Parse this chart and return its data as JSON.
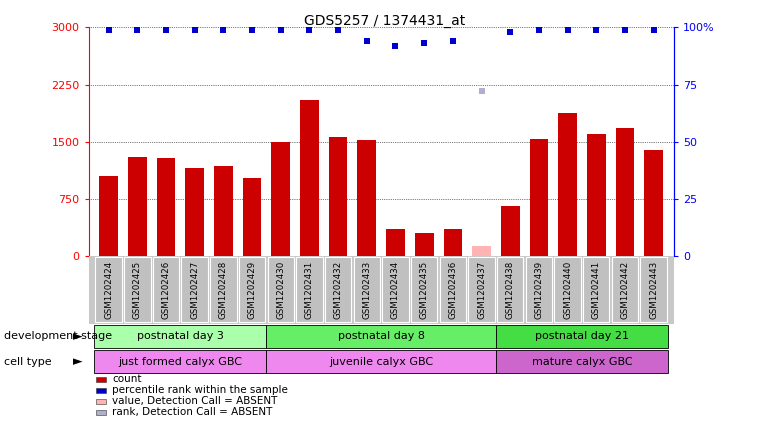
{
  "title": "GDS5257 / 1374431_at",
  "samples": [
    "GSM1202424",
    "GSM1202425",
    "GSM1202426",
    "GSM1202427",
    "GSM1202428",
    "GSM1202429",
    "GSM1202430",
    "GSM1202431",
    "GSM1202432",
    "GSM1202433",
    "GSM1202434",
    "GSM1202435",
    "GSM1202436",
    "GSM1202437",
    "GSM1202438",
    "GSM1202439",
    "GSM1202440",
    "GSM1202441",
    "GSM1202442",
    "GSM1202443"
  ],
  "counts": [
    1050,
    1300,
    1280,
    1150,
    1180,
    1020,
    1500,
    2050,
    1560,
    1520,
    350,
    300,
    350,
    130,
    650,
    1530,
    1880,
    1600,
    1680,
    1390
  ],
  "absent_count_idx": 13,
  "percentile_ranks_y": [
    2970,
    2970,
    2970,
    2970,
    2970,
    2970,
    2970,
    2970,
    2970,
    2820,
    2760,
    2790,
    2820,
    2160,
    2940,
    2970,
    2970,
    2970,
    2970,
    2970
  ],
  "absent_rank_idx": 13,
  "bar_color": "#cc0000",
  "absent_bar_color": "#ffb3b3",
  "rank_color": "#0000cc",
  "absent_rank_color": "#b0b0cc",
  "ylim_left": [
    0,
    3000
  ],
  "yticks_left": [
    0,
    750,
    1500,
    2250,
    3000
  ],
  "yticks_right": [
    0,
    25,
    50,
    75,
    100
  ],
  "yticklabels_left": [
    "0",
    "750",
    "1500",
    "2250",
    "3000"
  ],
  "yticklabels_right": [
    "0",
    "25",
    "50",
    "75",
    "100%"
  ],
  "dev_groups": [
    {
      "label": "postnatal day 3",
      "start": 0,
      "end": 5,
      "color": "#aaffaa"
    },
    {
      "label": "postnatal day 8",
      "start": 6,
      "end": 13,
      "color": "#66ee66"
    },
    {
      "label": "postnatal day 21",
      "start": 14,
      "end": 19,
      "color": "#44dd44"
    }
  ],
  "cell_groups": [
    {
      "label": "just formed calyx GBC",
      "start": 0,
      "end": 5,
      "color": "#ee88ee"
    },
    {
      "label": "juvenile calyx GBC",
      "start": 6,
      "end": 13,
      "color": "#ee88ee"
    },
    {
      "label": "mature calyx GBC",
      "start": 14,
      "end": 19,
      "color": "#cc66cc"
    }
  ],
  "dev_label": "development stage",
  "cell_label": "cell type",
  "legend_items": [
    {
      "label": "count",
      "color": "#cc0000"
    },
    {
      "label": "percentile rank within the sample",
      "color": "#0000cc"
    },
    {
      "label": "value, Detection Call = ABSENT",
      "color": "#ffb3b3"
    },
    {
      "label": "rank, Detection Call = ABSENT",
      "color": "#b0b0cc"
    }
  ],
  "bg_color": "#c8c8c8"
}
